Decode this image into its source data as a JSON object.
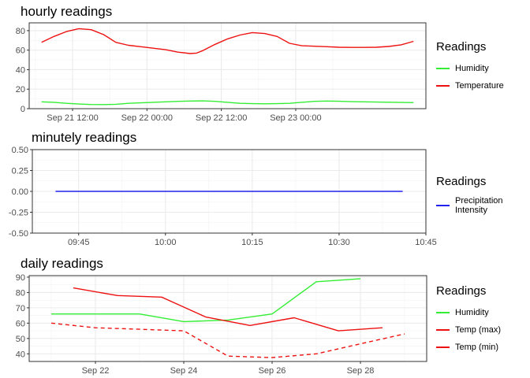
{
  "chart_data": [
    {
      "type": "line",
      "title": "hourly readings",
      "x_type": "time",
      "xlim": [
        "2023-09-21 05:00",
        "2023-09-23 21:00"
      ],
      "x_ticks": [
        {
          "value": "2023-09-21 12:00",
          "label": "Sep 21 12:00"
        },
        {
          "value": "2023-09-22 00:00",
          "label": "Sep 22 00:00"
        },
        {
          "value": "2023-09-22 12:00",
          "label": "Sep 22 12:00"
        },
        {
          "value": "2023-09-23 00:00",
          "label": "Sep 23 00:00"
        }
      ],
      "ylim": [
        0,
        88
      ],
      "y_ticks": [
        0,
        20,
        40,
        60,
        80
      ],
      "grid": true,
      "legend_title": "Readings",
      "legend_position": "right",
      "series": [
        {
          "name": "Humidity",
          "color": "#33ee33",
          "dash": false,
          "x": [
            "2023-09-21 07:00",
            "2023-09-21 09:00",
            "2023-09-21 11:00",
            "2023-09-21 13:00",
            "2023-09-21 15:00",
            "2023-09-21 17:00",
            "2023-09-21 19:00",
            "2023-09-21 21:00",
            "2023-09-21 23:00",
            "2023-09-22 01:00",
            "2023-09-22 03:00",
            "2023-09-22 05:00",
            "2023-09-22 07:00",
            "2023-09-22 09:00",
            "2023-09-22 11:00",
            "2023-09-22 13:00",
            "2023-09-22 15:00",
            "2023-09-22 17:00",
            "2023-09-22 19:00",
            "2023-09-22 21:00",
            "2023-09-22 23:00",
            "2023-09-23 01:00",
            "2023-09-23 03:00",
            "2023-09-23 05:00",
            "2023-09-23 07:00",
            "2023-09-23 09:00",
            "2023-09-23 11:00",
            "2023-09-23 13:00",
            "2023-09-23 15:00",
            "2023-09-23 17:00",
            "2023-09-23 19:00"
          ],
          "y": [
            7,
            6.5,
            5.5,
            4.8,
            4.3,
            4.2,
            4.5,
            5.5,
            6,
            6.5,
            7,
            7.5,
            7.8,
            8,
            7.5,
            6.5,
            5.5,
            5.2,
            5,
            5.2,
            5.5,
            6.5,
            7.5,
            7.8,
            7.6,
            7.2,
            7,
            6.8,
            6.6,
            6.4,
            6.2
          ]
        },
        {
          "name": "Temperature",
          "color": "#ee1111",
          "dash": false,
          "x": [
            "2023-09-21 07:00",
            "2023-09-21 09:00",
            "2023-09-21 11:00",
            "2023-09-21 13:00",
            "2023-09-21 15:00",
            "2023-09-21 17:00",
            "2023-09-21 19:00",
            "2023-09-21 21:00",
            "2023-09-21 23:00",
            "2023-09-22 01:00",
            "2023-09-22 03:00",
            "2023-09-22 05:00",
            "2023-09-22 07:00",
            "2023-09-22 08:00",
            "2023-09-22 09:00",
            "2023-09-22 11:00",
            "2023-09-22 13:00",
            "2023-09-22 15:00",
            "2023-09-22 17:00",
            "2023-09-22 19:00",
            "2023-09-22 21:00",
            "2023-09-22 23:00",
            "2023-09-23 01:00",
            "2023-09-23 03:00",
            "2023-09-23 05:00",
            "2023-09-23 07:00",
            "2023-09-23 09:00",
            "2023-09-23 11:00",
            "2023-09-23 13:00",
            "2023-09-23 15:00",
            "2023-09-23 17:00",
            "2023-09-23 19:00"
          ],
          "y": [
            68,
            74,
            79,
            82,
            81,
            76,
            68,
            65,
            63.5,
            62,
            60.5,
            58,
            56.5,
            57,
            59.5,
            66,
            71.5,
            75.5,
            78,
            77,
            74,
            67,
            64.5,
            64,
            63.5,
            63,
            62.8,
            62.8,
            63,
            63.8,
            65.5,
            69
          ]
        }
      ]
    },
    {
      "type": "line",
      "title": "minutely readings",
      "x_type": "time",
      "xlim": [
        "2023-09-21 09:37",
        "2023-09-21 10:45"
      ],
      "x_ticks": [
        {
          "value": "2023-09-21 09:45",
          "label": "09:45"
        },
        {
          "value": "2023-09-21 10:00",
          "label": "10:00"
        },
        {
          "value": "2023-09-21 10:15",
          "label": "10:15"
        },
        {
          "value": "2023-09-21 10:30",
          "label": "10:30"
        },
        {
          "value": "2023-09-21 10:45",
          "label": "10:45"
        }
      ],
      "ylim": [
        -0.5,
        0.5
      ],
      "y_ticks": [
        -0.5,
        -0.25,
        0,
        0.25,
        0.5
      ],
      "y_tick_labels": [
        "-0.50",
        "-0.25",
        "0.00",
        "0.25",
        "0.50"
      ],
      "grid": true,
      "legend_title": "Readings",
      "legend_position": "right",
      "series": [
        {
          "name": "Precipitation\nIntensity",
          "color": "#2222ee",
          "dash": false,
          "x": [
            "2023-09-21 09:41",
            "2023-09-21 10:41"
          ],
          "y": [
            0,
            0
          ]
        }
      ]
    },
    {
      "type": "line",
      "title": "daily readings",
      "x_type": "time",
      "xlim": [
        "2023-09-20 12:00",
        "2023-09-29 12:00"
      ],
      "x_ticks": [
        {
          "value": "2023-09-22 00:00",
          "label": "Sep 22"
        },
        {
          "value": "2023-09-24 00:00",
          "label": "Sep 24"
        },
        {
          "value": "2023-09-26 00:00",
          "label": "Sep 26"
        },
        {
          "value": "2023-09-28 00:00",
          "label": "Sep 28"
        }
      ],
      "ylim": [
        35,
        91
      ],
      "y_ticks": [
        40,
        50,
        60,
        70,
        80,
        90
      ],
      "grid": true,
      "legend_title": "Readings",
      "legend_position": "right",
      "series": [
        {
          "name": "Humidity",
          "color": "#33ee33",
          "dash": false,
          "x": [
            "2023-09-21 00:00",
            "2023-09-22 00:00",
            "2023-09-23 00:00",
            "2023-09-24 00:00",
            "2023-09-25 00:00",
            "2023-09-26 00:00",
            "2023-09-27 00:00",
            "2023-09-28 00:00"
          ],
          "y": [
            66,
            66,
            66,
            61,
            62,
            66,
            87,
            89
          ]
        },
        {
          "name": "Temp (max)",
          "color": "#ee1111",
          "dash": false,
          "x": [
            "2023-09-21 12:00",
            "2023-09-22 12:00",
            "2023-09-23 12:00",
            "2023-09-24 12:00",
            "2023-09-25 12:00",
            "2023-09-26 12:00",
            "2023-09-27 12:00",
            "2023-09-28 12:00"
          ],
          "y": [
            83,
            78,
            77,
            64,
            58.5,
            63.5,
            55,
            57
          ]
        },
        {
          "name": "Temp (min)",
          "color": "#ee1111",
          "dash": true,
          "x": [
            "2023-09-21 00:00",
            "2023-09-22 00:00",
            "2023-09-23 00:00",
            "2023-09-24 00:00",
            "2023-09-25 00:00",
            "2023-09-26 00:00",
            "2023-09-27 00:00",
            "2023-09-28 00:00",
            "2023-09-29 00:00"
          ],
          "y": [
            60,
            57,
            56,
            55,
            38.5,
            37.5,
            40,
            46.5,
            53
          ]
        }
      ]
    }
  ]
}
